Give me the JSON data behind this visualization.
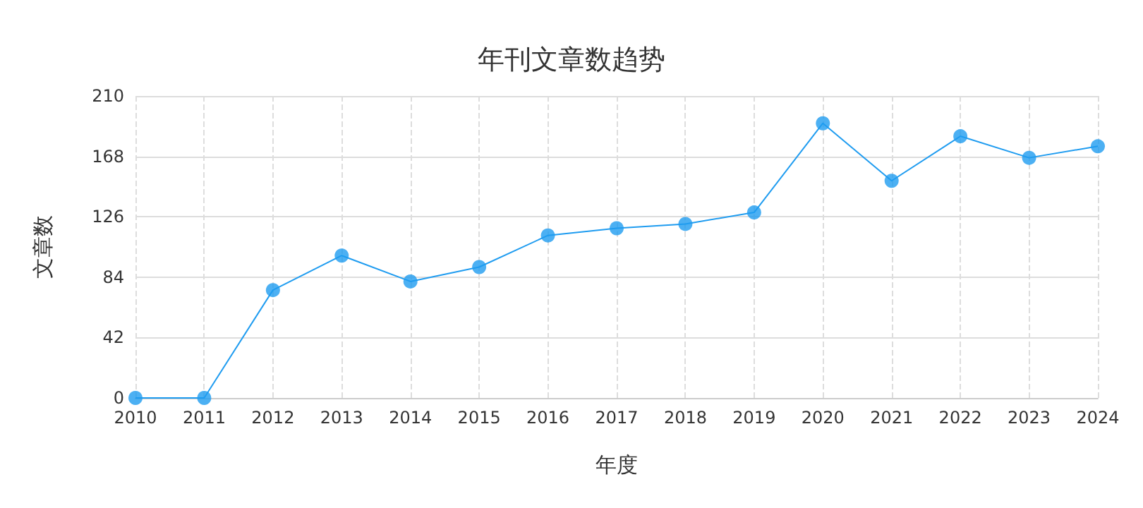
{
  "chart_data": {
    "type": "line",
    "title": "年刊文章数趋势",
    "xlabel": "年度",
    "ylabel": "文章数",
    "categories": [
      "2010",
      "2011",
      "2012",
      "2013",
      "2014",
      "2015",
      "2016",
      "2017",
      "2018",
      "2019",
      "2020",
      "2021",
      "2022",
      "2023",
      "2024"
    ],
    "series": [
      {
        "color": "#1f9cf0",
        "values": [
          0,
          0,
          75,
          99,
          81,
          91,
          113,
          118,
          121,
          129,
          191,
          151,
          182,
          167,
          175
        ]
      }
    ],
    "ylim": [
      0,
      210
    ],
    "yticks": [
      0,
      42,
      84,
      126,
      168,
      210
    ],
    "grid": true,
    "marker": "circle",
    "line_style": "solid"
  }
}
